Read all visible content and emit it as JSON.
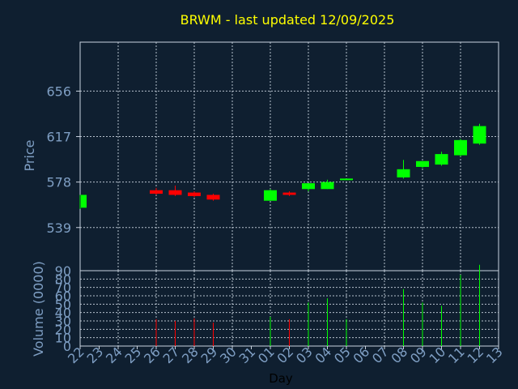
{
  "chart_data": {
    "type": "candlestick",
    "title": "BRWM - last updated 12/09/2025",
    "xlabel": "Day",
    "price_axis": {
      "label": "Price",
      "ylim": [
        502,
        698
      ],
      "ticks": [
        539,
        578,
        617,
        656
      ]
    },
    "volume_axis": {
      "label": "Volume (0000)",
      "ylim": [
        0,
        90
      ],
      "ticks": [
        0,
        10,
        20,
        30,
        40,
        50,
        60,
        70,
        80,
        90
      ]
    },
    "x_tick_labels": [
      "22",
      "23",
      "24",
      "25",
      "26",
      "27",
      "28",
      "29",
      "30",
      "31",
      "01",
      "02",
      "03",
      "04",
      "05",
      "06",
      "07",
      "08",
      "09",
      "10",
      "11",
      "12",
      "13"
    ],
    "colors": {
      "background": "#0f1f30",
      "up": "#00ff00",
      "down": "#ff0000",
      "axis_text": "#7f9fc4",
      "title": "#ffff00",
      "frame": "#c9d3df"
    },
    "candles": [
      {
        "day": "22",
        "open": 556,
        "high": 567,
        "low": 555,
        "close": 567,
        "volume": 0
      },
      {
        "day": "26",
        "open": 571,
        "high": 573,
        "low": 567,
        "close": 568,
        "volume": 32
      },
      {
        "day": "27",
        "open": 571,
        "high": 575,
        "low": 566,
        "close": 567,
        "volume": 30
      },
      {
        "day": "28",
        "open": 569,
        "high": 570,
        "low": 565,
        "close": 566,
        "volume": 33
      },
      {
        "day": "29",
        "open": 567,
        "high": 568,
        "low": 562,
        "close": 563,
        "volume": 28
      },
      {
        "day": "01",
        "open": 562,
        "high": 572,
        "low": 562,
        "close": 571,
        "volume": 35
      },
      {
        "day": "02",
        "open": 569,
        "high": 570,
        "low": 566,
        "close": 567,
        "volume": 32
      },
      {
        "day": "03",
        "open": 572,
        "high": 577,
        "low": 570,
        "close": 577,
        "volume": 52
      },
      {
        "day": "04",
        "open": 572,
        "high": 580,
        "low": 572,
        "close": 578,
        "volume": 57
      },
      {
        "day": "05",
        "open": 580,
        "high": 581,
        "low": 580,
        "close": 581,
        "volume": 32
      },
      {
        "day": "08",
        "open": 582,
        "high": 597,
        "low": 581,
        "close": 589,
        "volume": 68
      },
      {
        "day": "09",
        "open": 591,
        "high": 596,
        "low": 590,
        "close": 596,
        "volume": 52
      },
      {
        "day": "10",
        "open": 593,
        "high": 604,
        "low": 592,
        "close": 602,
        "volume": 48
      },
      {
        "day": "11",
        "open": 601,
        "high": 615,
        "low": 600,
        "close": 614,
        "volume": 85
      },
      {
        "day": "12",
        "open": 611,
        "high": 628,
        "low": 610,
        "close": 626,
        "volume": 97
      }
    ]
  }
}
